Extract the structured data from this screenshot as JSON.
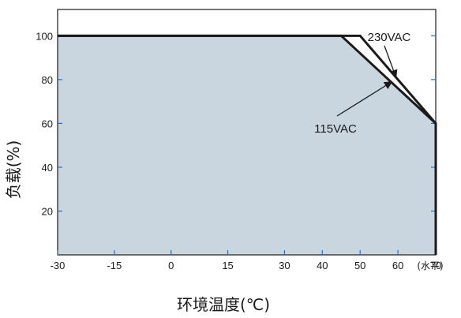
{
  "chart_data": {
    "type": "line",
    "title": "",
    "xlabel": "环境温度(℃)",
    "ylabel": "负载(%)",
    "x_unit_label": "(水平)",
    "xlim": [
      -30,
      70
    ],
    "ylim": [
      0,
      112
    ],
    "x_ticks": [
      -30,
      -15,
      0,
      15,
      30,
      40,
      50,
      60,
      70
    ],
    "y_ticks": [
      20,
      40,
      60,
      80,
      100
    ],
    "grid": false,
    "fill_color": "#c9d6df",
    "line_color": "#1a1a1a",
    "series": [
      {
        "name": "230VAC",
        "x": [
          -30,
          50,
          70,
          70
        ],
        "y": [
          100,
          100,
          60,
          0
        ]
      },
      {
        "name": "115VAC",
        "x": [
          -30,
          45,
          70,
          70
        ],
        "y": [
          100,
          100,
          60,
          0
        ]
      }
    ],
    "annotations": [
      {
        "text": "230VAC",
        "series": "230VAC"
      },
      {
        "text": "115VAC",
        "series": "115VAC"
      }
    ]
  }
}
